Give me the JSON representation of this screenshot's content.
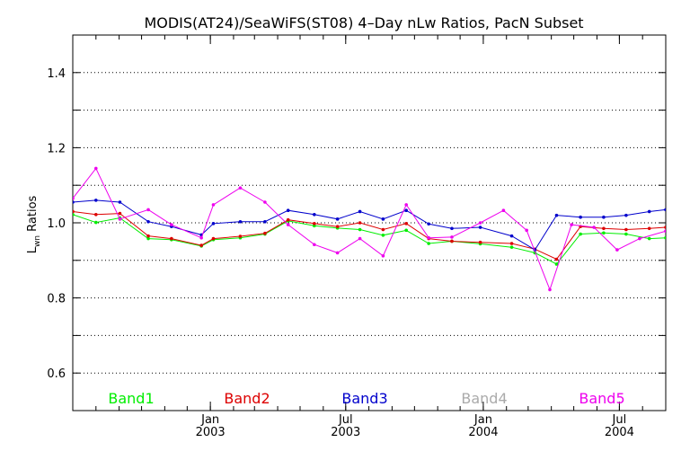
{
  "chart_data": {
    "type": "line",
    "title": "MODIS(AT24)/SeaWiFS(ST08) 4–Day nLw Ratios, PacN Subset",
    "ylabel_main": "L",
    "ylabel_sub": "wn",
    "ylabel_rest": " Ratios",
    "ylim": [
      0.5,
      1.5
    ],
    "yticks": [
      0.6,
      0.8,
      1.0,
      1.2,
      1.4
    ],
    "ytick_labels": [
      "0.6",
      "0.8",
      "1.0",
      "1.2",
      "1.4"
    ],
    "grid_y": [
      0.6,
      0.7,
      0.8,
      0.9,
      1.0,
      1.1,
      1.2,
      1.3,
      1.4
    ],
    "xlim": [
      "2002-07-01",
      "2004-09-01"
    ],
    "xticks": [
      {
        "date": "2003-01-01",
        "month": "Jan",
        "year": "2003"
      },
      {
        "date": "2003-07-01",
        "month": "Jul",
        "year": "2003"
      },
      {
        "date": "2004-01-01",
        "month": "Jan",
        "year": "2004"
      },
      {
        "date": "2004-07-01",
        "month": "Jul",
        "year": "2004"
      }
    ],
    "series": [
      {
        "name": "Band1",
        "color": "#00ee00",
        "x": [
          "2002-07-01",
          "2002-08-01",
          "2002-09-02",
          "2002-10-10",
          "2002-11-10",
          "2002-12-20",
          "2003-01-05",
          "2003-02-10",
          "2003-03-15",
          "2003-04-15",
          "2003-05-20",
          "2003-06-20",
          "2003-07-20",
          "2003-08-20",
          "2003-09-20",
          "2003-10-20",
          "2003-11-20",
          "2003-12-28",
          "2004-02-08",
          "2004-03-10",
          "2004-04-08",
          "2004-05-10",
          "2004-06-10",
          "2004-07-10",
          "2004-08-10",
          "2004-09-01"
        ],
        "values": [
          1.022,
          1.001,
          1.013,
          0.958,
          0.955,
          0.938,
          0.955,
          0.96,
          0.97,
          1.005,
          0.992,
          0.986,
          0.982,
          0.967,
          0.98,
          0.945,
          0.951,
          0.944,
          0.935,
          0.92,
          0.89,
          0.97,
          0.973,
          0.97,
          0.958,
          0.96
        ]
      },
      {
        "name": "Band2",
        "color": "#dd0000",
        "x": [
          "2002-07-01",
          "2002-08-01",
          "2002-09-02",
          "2002-10-10",
          "2002-11-10",
          "2002-12-20",
          "2003-01-05",
          "2003-02-10",
          "2003-03-15",
          "2003-04-15",
          "2003-05-20",
          "2003-06-20",
          "2003-07-20",
          "2003-08-20",
          "2003-09-20",
          "2003-10-20",
          "2003-11-20",
          "2003-12-28",
          "2004-02-08",
          "2004-03-10",
          "2004-04-08",
          "2004-05-10",
          "2004-06-10",
          "2004-07-10",
          "2004-08-10",
          "2004-09-01"
        ],
        "values": [
          1.03,
          1.022,
          1.025,
          0.965,
          0.958,
          0.94,
          0.958,
          0.964,
          0.972,
          1.008,
          0.998,
          0.99,
          1.0,
          0.982,
          0.998,
          0.958,
          0.951,
          0.948,
          0.945,
          0.93,
          0.903,
          0.99,
          0.985,
          0.982,
          0.985,
          0.988
        ]
      },
      {
        "name": "Band3",
        "color": "#0000cc",
        "x": [
          "2002-07-01",
          "2002-08-01",
          "2002-09-02",
          "2002-10-10",
          "2002-11-10",
          "2002-12-20",
          "2003-01-05",
          "2003-02-10",
          "2003-03-15",
          "2003-04-15",
          "2003-05-20",
          "2003-06-20",
          "2003-07-20",
          "2003-08-20",
          "2003-09-20",
          "2003-10-20",
          "2003-11-20",
          "2003-12-28",
          "2004-02-08",
          "2004-03-10",
          "2004-04-08",
          "2004-05-10",
          "2004-06-10",
          "2004-07-10",
          "2004-08-10",
          "2004-09-01"
        ],
        "values": [
          1.055,
          1.06,
          1.055,
          1.003,
          0.99,
          0.968,
          0.998,
          1.003,
          1.003,
          1.033,
          1.022,
          1.01,
          1.03,
          1.01,
          1.033,
          0.997,
          0.985,
          0.988,
          0.965,
          0.928,
          1.02,
          1.015,
          1.015,
          1.02,
          1.03,
          1.035
        ]
      },
      {
        "name": "Band4",
        "color": "#aaaaaa",
        "x": [],
        "values": []
      },
      {
        "name": "Band5",
        "color": "#ee00ee",
        "x": [
          "2002-07-01",
          "2002-08-01",
          "2002-09-02",
          "2002-10-10",
          "2002-11-10",
          "2002-12-20",
          "2003-01-05",
          "2003-02-10",
          "2003-03-15",
          "2003-04-15",
          "2003-05-20",
          "2003-06-20",
          "2003-07-20",
          "2003-08-20",
          "2003-09-20",
          "2003-10-20",
          "2003-11-20",
          "2003-12-28",
          "2004-01-28",
          "2004-02-28",
          "2004-03-30",
          "2004-04-28",
          "2004-05-28",
          "2004-06-28",
          "2004-07-28",
          "2004-09-01"
        ],
        "values": [
          1.065,
          1.145,
          1.01,
          1.035,
          0.995,
          0.96,
          1.048,
          1.093,
          1.055,
          0.995,
          0.942,
          0.92,
          0.958,
          0.912,
          1.048,
          0.96,
          0.962,
          1.0,
          1.033,
          0.98,
          0.822,
          0.995,
          0.988,
          0.928,
          0.958,
          0.978
        ]
      }
    ],
    "legend": [
      {
        "label": "Band1",
        "color": "#00ee00"
      },
      {
        "label": "Band2",
        "color": "#dd0000"
      },
      {
        "label": "Band3",
        "color": "#0000cc"
      },
      {
        "label": "Band4",
        "color": "#aaaaaa"
      },
      {
        "label": "Band5",
        "color": "#ee00ee"
      }
    ],
    "legend_placement": "bottom-inside",
    "grid": true
  }
}
